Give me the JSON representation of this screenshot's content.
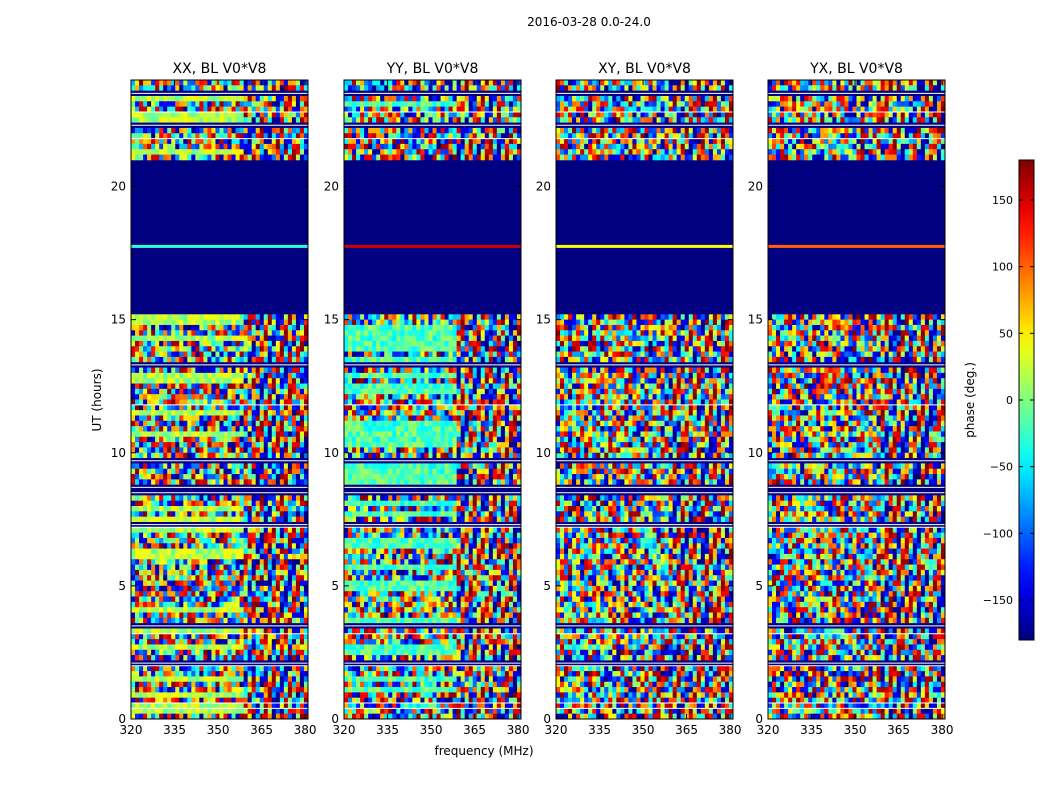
{
  "figure": {
    "suptitle": "2016-03-28 0.0-24.0",
    "xlabel": "frequency (MHz)",
    "ylabel": "UT (hours)"
  },
  "chart_data": {
    "type": "heatmap",
    "description": "Visibility phase waterfall, time vs frequency, four polarization products",
    "panels": [
      {
        "title": "XX, BL V0*V8",
        "pol": "XX"
      },
      {
        "title": "YY, BL V0*V8",
        "pol": "YY"
      },
      {
        "title": "XY, BL V0*V8",
        "pol": "XY"
      },
      {
        "title": "YX, BL V0*V8",
        "pol": "YX"
      }
    ],
    "xlim": [
      320,
      381
    ],
    "x_ticks": [
      320,
      335,
      350,
      365,
      380
    ],
    "x_tick_labels": [
      "320",
      "335",
      "350",
      "365",
      "380"
    ],
    "ylim": [
      0,
      24
    ],
    "y_ticks": [
      0,
      5,
      10,
      15,
      20
    ],
    "y_tick_labels": [
      "0",
      "5",
      "10",
      "15",
      "20"
    ],
    "colorbar": {
      "label": "phase (deg.)",
      "range": [
        -180,
        180
      ],
      "ticks": [
        -150,
        -100,
        -50,
        0,
        50,
        100,
        150
      ],
      "tick_labels": [
        "−150",
        "−100",
        "−50",
        "0",
        "50",
        "100",
        "150"
      ],
      "colormap": "jet"
    },
    "flagged_block_hours": [
      15.2,
      21.0
    ],
    "flagged_line_hour": 17.75,
    "band_hours": [
      21.8,
      22.3,
      22.8,
      23.5,
      8.5,
      8.7,
      7.3,
      7.2,
      3.5,
      3.2,
      2.1,
      2.0,
      0.6,
      0.4,
      13.3,
      11.8,
      9.7
    ]
  }
}
